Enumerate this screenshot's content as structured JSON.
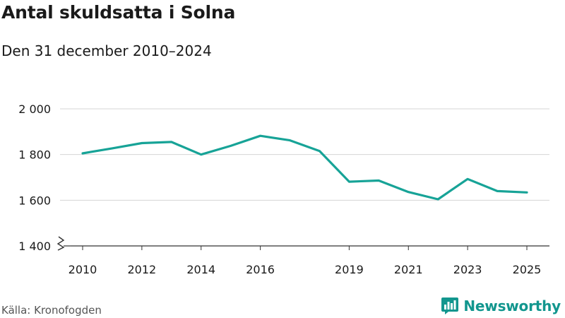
{
  "header": {
    "title": "Antal skuldsatta i Solna",
    "subtitle": "Den 31 december 2010–2024"
  },
  "footer": {
    "source": "Källa: Kronofogden",
    "brand": "Newsworthy",
    "brand_icon": "bar-chart-icon"
  },
  "colors": {
    "line": "#17a397",
    "brand": "#12968e",
    "grid": "#d4d4d4",
    "axis": "#333333"
  },
  "chart_data": {
    "type": "line",
    "title": "Antal skuldsatta i Solna",
    "subtitle": "Den 31 december 2010–2024",
    "xlabel": "",
    "ylabel": "",
    "xlim": [
      2010,
      2025
    ],
    "ylim": [
      1400,
      2000
    ],
    "axis_break": true,
    "grid": true,
    "x_ticks": [
      2010,
      2012,
      2014,
      2016,
      2019,
      2021,
      2023,
      2025
    ],
    "y_ticks": [
      {
        "value": 1400,
        "label": "1 400"
      },
      {
        "value": 1600,
        "label": "1 600"
      },
      {
        "value": 1800,
        "label": "1 800"
      },
      {
        "value": 2000,
        "label": "2 000"
      }
    ],
    "series": [
      {
        "name": "Antal skuldsatta",
        "x": [
          2010,
          2011,
          2012,
          2013,
          2014,
          2015,
          2016,
          2017,
          2018,
          2019,
          2020,
          2021,
          2022,
          2023,
          2024,
          2025
        ],
        "values": [
          1805,
          1827,
          1850,
          1855,
          1800,
          1838,
          1882,
          1862,
          1815,
          1681,
          1686,
          1636,
          1604,
          1693,
          1640,
          1634
        ]
      }
    ]
  }
}
